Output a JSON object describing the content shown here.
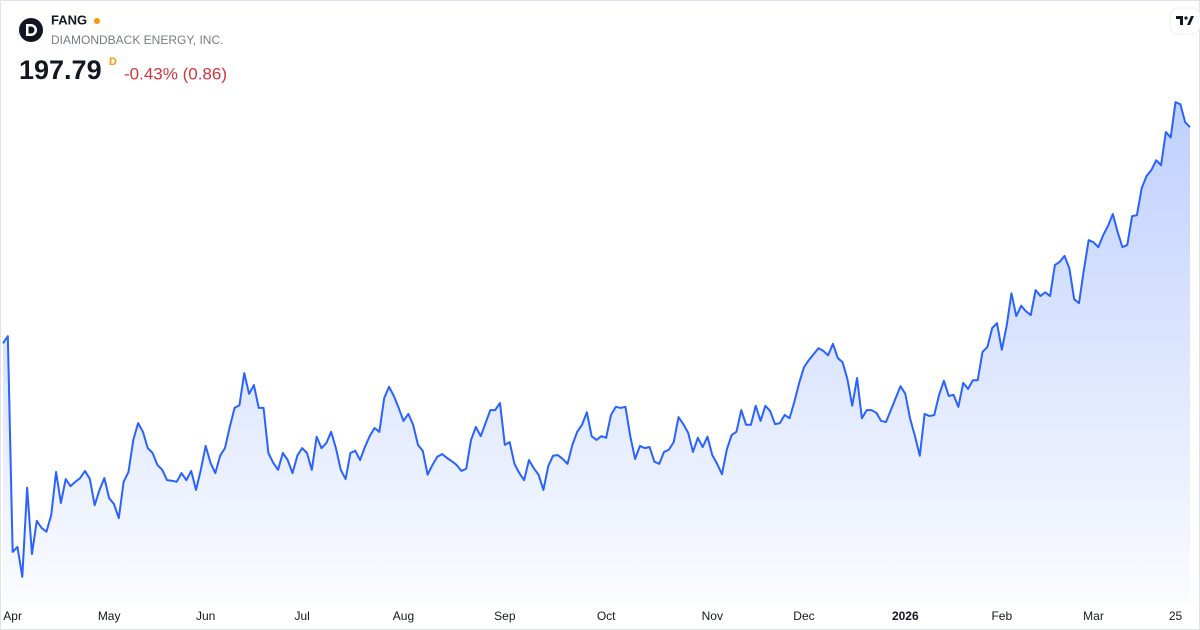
{
  "header": {
    "symbol": "FANG",
    "company": "DIAMONDBACK ENERGY, INC.",
    "price": "197.79",
    "price_flag": "D",
    "change": "-0.43% (0.86)"
  },
  "chart_data": {
    "type": "line",
    "color": "#2962ff",
    "ylim": [
      110,
      205
    ],
    "categories": [
      null,
      null,
      "Apr",
      null,
      null,
      null,
      null,
      null,
      null,
      null,
      null,
      null,
      null,
      null,
      null,
      null,
      null,
      null,
      null,
      null,
      null,
      null,
      "May",
      null,
      null,
      null,
      null,
      null,
      null,
      null,
      null,
      null,
      null,
      null,
      null,
      null,
      null,
      null,
      null,
      null,
      null,
      null,
      "Jun",
      null,
      null,
      null,
      null,
      null,
      null,
      null,
      null,
      null,
      null,
      null,
      null,
      null,
      null,
      null,
      null,
      null,
      null,
      null,
      "Jul",
      null,
      null,
      null,
      null,
      null,
      null,
      null,
      null,
      null,
      null,
      null,
      null,
      null,
      null,
      null,
      null,
      null,
      null,
      null,
      null,
      "Aug",
      null,
      null,
      null,
      null,
      null,
      null,
      null,
      null,
      null,
      null,
      null,
      null,
      null,
      null,
      null,
      null,
      null,
      null,
      null,
      null,
      "Sep",
      null,
      null,
      null,
      null,
      null,
      null,
      null,
      null,
      null,
      null,
      null,
      null,
      null,
      null,
      null,
      null,
      null,
      null,
      null,
      null,
      "Oct",
      null,
      null,
      null,
      null,
      null,
      null,
      null,
      null,
      null,
      null,
      null,
      null,
      null,
      null,
      null,
      null,
      null,
      null,
      null,
      null,
      null,
      "Nov",
      null,
      null,
      null,
      null,
      null,
      null,
      null,
      null,
      null,
      null,
      null,
      null,
      null,
      null,
      null,
      null,
      null,
      null,
      "Dec",
      null,
      null,
      null,
      null,
      null,
      null,
      null,
      null,
      null,
      null,
      null,
      null,
      null,
      null,
      null,
      null,
      null,
      null,
      null,
      null,
      "2026",
      null,
      null,
      null,
      null,
      null,
      null,
      null,
      null,
      null,
      null,
      null,
      null,
      null,
      null,
      null,
      null,
      null,
      null,
      null,
      "Feb",
      null,
      null,
      null,
      null,
      null,
      null,
      null,
      null,
      null,
      null,
      null,
      null,
      null,
      null,
      null,
      null,
      null,
      null,
      "Mar",
      null,
      null,
      null,
      null,
      null,
      null,
      null,
      null,
      null,
      null,
      null,
      null,
      null,
      null,
      null,
      null,
      "25",
      null,
      null,
      null
    ],
    "values": [
      158.0,
      159.3,
      119.6,
      120.5,
      115.0,
      131.4,
      119.2,
      125.3,
      124.0,
      123.3,
      126.4,
      134.3,
      128.6,
      133.0,
      131.7,
      132.5,
      133.2,
      134.5,
      133.0,
      128.2,
      131.0,
      133.2,
      129.5,
      128.4,
      125.8,
      132.5,
      134.3,
      140.2,
      143.3,
      141.7,
      138.7,
      137.8,
      135.6,
      134.7,
      132.8,
      132.7,
      132.5,
      134.1,
      132.8,
      134.5,
      131.0,
      134.7,
      139.1,
      136.0,
      134.1,
      137.3,
      138.7,
      142.6,
      146.1,
      146.6,
      152.5,
      148.7,
      150.3,
      146.1,
      146.1,
      137.8,
      136.0,
      134.7,
      137.8,
      136.5,
      134.1,
      137.3,
      138.7,
      137.8,
      134.7,
      140.8,
      138.7,
      139.6,
      141.7,
      138.7,
      134.7,
      133.0,
      137.8,
      138.2,
      136.5,
      138.9,
      140.9,
      142.4,
      141.7,
      147.9,
      150.0,
      148.3,
      146.1,
      143.7,
      145.0,
      143.0,
      139.3,
      138.2,
      133.8,
      135.6,
      137.1,
      137.6,
      136.9,
      136.3,
      135.6,
      134.5,
      134.9,
      140.2,
      142.6,
      140.9,
      143.3,
      145.7,
      145.7,
      147.0,
      139.3,
      139.8,
      135.8,
      134.1,
      132.8,
      136.5,
      135.0,
      133.8,
      131.0,
      135.4,
      137.3,
      137.4,
      136.7,
      135.8,
      139.3,
      141.7,
      143.0,
      145.3,
      140.9,
      140.2,
      140.9,
      140.6,
      144.8,
      146.3,
      146.1,
      146.3,
      140.9,
      136.7,
      139.1,
      138.7,
      138.9,
      136.2,
      135.8,
      138.0,
      138.4,
      139.8,
      144.4,
      143.1,
      141.5,
      138.0,
      140.6,
      138.9,
      140.8,
      137.4,
      135.8,
      133.9,
      138.4,
      141.1,
      141.7,
      145.7,
      143.0,
      143.0,
      146.5,
      143.7,
      146.5,
      145.5,
      143.1,
      143.3,
      144.8,
      144.2,
      147.2,
      150.7,
      153.6,
      154.9,
      156.0,
      157.1,
      156.6,
      155.8,
      157.9,
      155.3,
      154.5,
      151.4,
      146.5,
      151.6,
      144.2,
      145.7,
      145.7,
      145.2,
      143.7,
      143.5,
      145.7,
      147.9,
      150.1,
      148.7,
      144.1,
      140.9,
      137.3,
      145.0,
      144.6,
      144.8,
      148.5,
      151.1,
      148.3,
      148.5,
      146.3,
      150.7,
      149.6,
      151.2,
      151.2,
      156.4,
      157.3,
      160.8,
      161.7,
      156.8,
      161.2,
      167.2,
      163.0,
      164.9,
      163.9,
      163.2,
      167.8,
      166.7,
      167.4,
      166.7,
      172.4,
      173.0,
      174.1,
      171.8,
      166.1,
      165.4,
      171.5,
      177.0,
      176.6,
      175.7,
      177.9,
      179.6,
      181.8,
      178.5,
      175.7,
      176.1,
      181.4,
      181.6,
      186.6,
      188.8,
      189.9,
      191.7,
      190.8,
      196.9,
      195.9,
      202.4,
      202.0,
      198.7,
      197.79
    ]
  }
}
